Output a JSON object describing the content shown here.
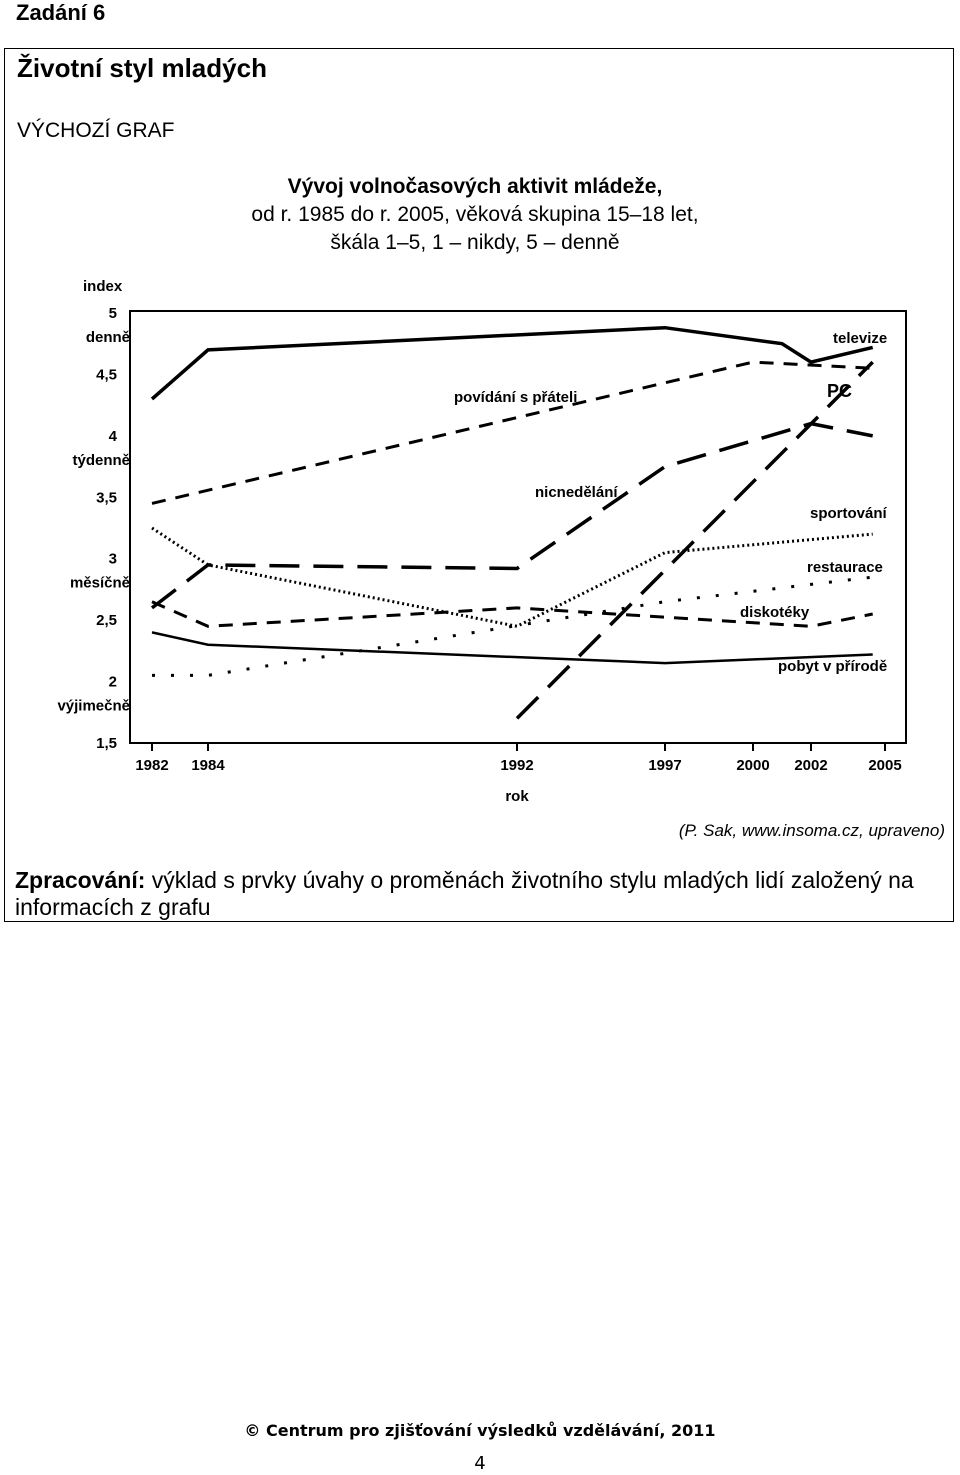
{
  "heading": "Zadání 6",
  "main_title": "Životní styl mladých",
  "source_label": "VÝCHOZÍ GRAF",
  "citation": "(P. Sak, www.insoma.cz, upraveno)",
  "task": {
    "label": "Zpracování:",
    "text": " výklad s prvky úvahy o proměnách životního stylu mladých lidí založený na informacích z grafu"
  },
  "footer": {
    "copyright": "© Centrum pro zjišťování výsledků vzdělávání, 2011",
    "page_number": "4"
  },
  "chart_data": {
    "type": "line",
    "title": "Vývoj volnočasových aktivit mládeže,",
    "subtitle": [
      "od r. 1985 do r. 2005, věková skupina 15–18 let,",
      "škála 1–5, 1 – nikdy, 5 – denně"
    ],
    "xlabel": "rok",
    "ylabel": "index",
    "x_ticks": [
      "1982",
      "1984",
      "1992",
      "1997",
      "2000",
      "2002",
      "2005"
    ],
    "y_ticks": [
      {
        "value": 5,
        "label": "5",
        "sub": "denně"
      },
      {
        "value": 4.5,
        "label": "4,5",
        "sub": ""
      },
      {
        "value": 4,
        "label": "4",
        "sub": "týdenně"
      },
      {
        "value": 3.5,
        "label": "3,5",
        "sub": ""
      },
      {
        "value": 3,
        "label": "3",
        "sub": "měsíčně"
      },
      {
        "value": 2.5,
        "label": "2,5",
        "sub": ""
      },
      {
        "value": 2,
        "label": "2",
        "sub": "výjimečně"
      },
      {
        "value": 1.5,
        "label": "1,5",
        "sub": ""
      }
    ],
    "ylim": [
      1.5,
      5.2
    ],
    "grid": false,
    "series": [
      {
        "name": "televize",
        "style": "solid-thick",
        "points": [
          [
            1982,
            4.3
          ],
          [
            1984,
            4.7
          ],
          [
            1997,
            4.88
          ],
          [
            2001,
            4.75
          ],
          [
            2002,
            4.6
          ],
          [
            2004.5,
            4.72
          ]
        ]
      },
      {
        "name": "povídání s přáteli",
        "style": "dashed",
        "points": [
          [
            1982,
            3.45
          ],
          [
            2000,
            4.6
          ],
          [
            2004.5,
            4.55
          ]
        ]
      },
      {
        "name": "PC",
        "style": "long-dashed",
        "points": [
          [
            1992,
            1.7
          ],
          [
            2004.5,
            4.6
          ]
        ]
      },
      {
        "name": "nicnedělání",
        "style": "long-dashed",
        "points": [
          [
            1982,
            2.6
          ],
          [
            1984,
            2.95
          ],
          [
            1992,
            2.92
          ],
          [
            1997,
            3.75
          ],
          [
            2002,
            4.1
          ],
          [
            2004.5,
            4.0
          ]
        ]
      },
      {
        "name": "sportování",
        "style": "dense-dotted",
        "points": [
          [
            1982,
            3.25
          ],
          [
            1984,
            2.95
          ],
          [
            1992,
            2.45
          ],
          [
            1997,
            3.05
          ],
          [
            2004.5,
            3.2
          ]
        ]
      },
      {
        "name": "restaurace",
        "style": "sparse-dotted",
        "points": [
          [
            1982,
            2.05
          ],
          [
            1984,
            2.05
          ],
          [
            1997,
            2.65
          ],
          [
            2004.5,
            2.85
          ]
        ]
      },
      {
        "name": "diskotéky",
        "style": "dashed",
        "points": [
          [
            1982,
            2.65
          ],
          [
            1984,
            2.45
          ],
          [
            1992,
            2.6
          ],
          [
            2002,
            2.45
          ],
          [
            2004.5,
            2.55
          ]
        ]
      },
      {
        "name": "pobyt v přírodě",
        "style": "solid",
        "points": [
          [
            1982,
            2.4
          ],
          [
            1984,
            2.3
          ],
          [
            1997,
            2.15
          ],
          [
            2004.5,
            2.22
          ]
        ]
      }
    ]
  }
}
